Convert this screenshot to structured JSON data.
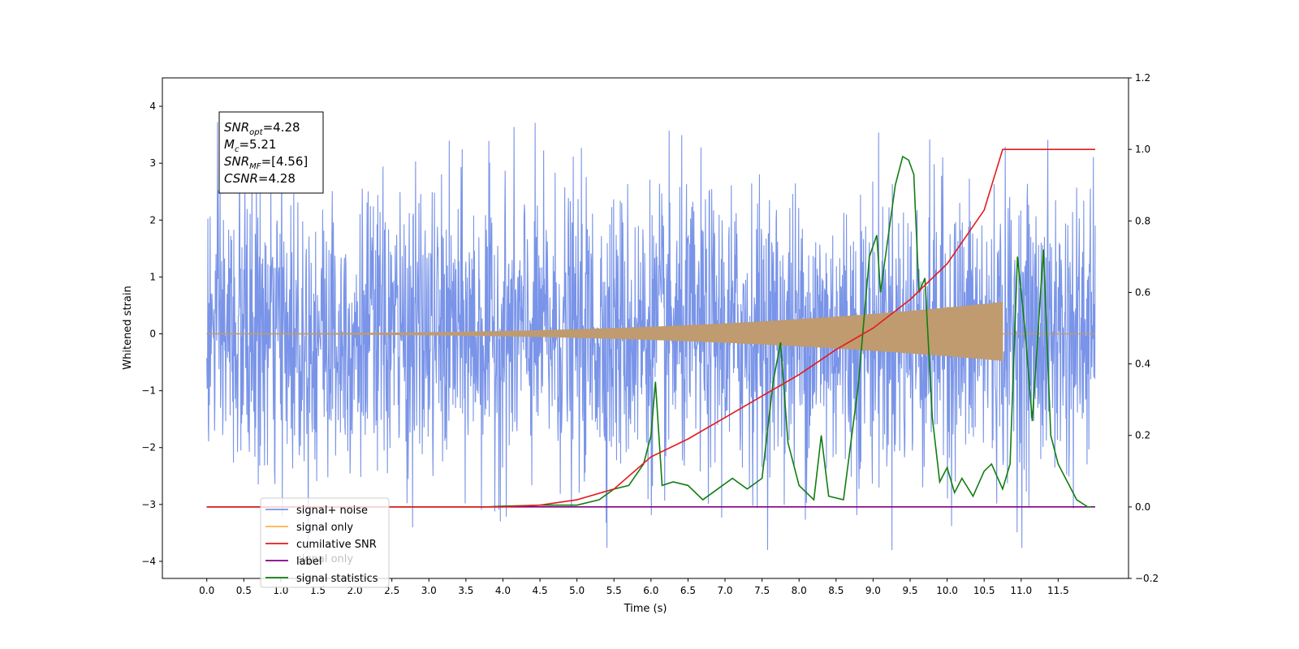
{
  "chart_data": {
    "type": "line",
    "title": "",
    "xlabel": "Time (s)",
    "ylabel": "Whitened strain",
    "y2label": "",
    "xlim": [
      -0.6,
      12.45
    ],
    "ylim": [
      -4.3,
      4.5
    ],
    "y2lim": [
      -0.2,
      1.2
    ],
    "xticks": [
      "0.0",
      "0.5",
      "1.0",
      "1.5",
      "2.0",
      "2.5",
      "3.0",
      "3.5",
      "4.0",
      "4.5",
      "5.0",
      "5.5",
      "6.0",
      "6.5",
      "7.0",
      "7.5",
      "8.0",
      "8.5",
      "9.0",
      "9.5",
      "10.0",
      "10.5",
      "11.0",
      "11.5"
    ],
    "yticks": [
      "4",
      "3",
      "2",
      "1",
      "0",
      "−1",
      "−2",
      "−3",
      "−4"
    ],
    "y2ticks": [
      "1.2",
      "1.0",
      "0.8",
      "0.6",
      "0.4",
      "0.2",
      "0.0",
      "−0.2"
    ],
    "grid": false,
    "legend_position": "lower-left",
    "colors": {
      "signal_noise": "#7994e8",
      "signal_only": "#ffb347",
      "signal_only_overlap": "#bf9b6f",
      "cumulative_snr": "#e41a1c",
      "label": "#800080",
      "signal_statistics": "#117d11"
    },
    "series": [
      {
        "name": "signal+ noise",
        "axis": "left",
        "description_range": [
          -3.8,
          4.1
        ],
        "x_range": [
          0,
          12.0
        ]
      },
      {
        "name": "signal only",
        "axis": "left",
        "x_range": [
          0,
          12.0
        ],
        "peak_time": 10.75,
        "peak_amplitude": 0.55
      },
      {
        "name": "cumilative SNR",
        "axis": "right",
        "x": [
          0,
          4.0,
          4.5,
          5.0,
          5.5,
          6.0,
          6.5,
          7.0,
          7.5,
          8.0,
          8.5,
          9.0,
          9.5,
          10.0,
          10.5,
          10.75,
          12.0
        ],
        "values": [
          0,
          0,
          0.005,
          0.02,
          0.05,
          0.14,
          0.19,
          0.25,
          0.31,
          0.37,
          0.44,
          0.5,
          0.58,
          0.68,
          0.83,
          1.0,
          1.0
        ]
      },
      {
        "name": "label",
        "axis": "right",
        "x": [
          0,
          12.0
        ],
        "values": [
          0,
          0
        ]
      },
      {
        "name": "signal statistics",
        "axis": "right",
        "x": [
          0,
          3.8,
          4.0,
          4.5,
          5.0,
          5.3,
          5.5,
          5.7,
          5.9,
          6.0,
          6.06,
          6.15,
          6.3,
          6.5,
          6.7,
          6.9,
          7.1,
          7.3,
          7.5,
          7.65,
          7.75,
          7.85,
          8.0,
          8.2,
          8.3,
          8.4,
          8.6,
          8.8,
          8.95,
          9.05,
          9.1,
          9.2,
          9.3,
          9.4,
          9.48,
          9.55,
          9.62,
          9.7,
          9.8,
          9.9,
          10.0,
          10.1,
          10.2,
          10.35,
          10.5,
          10.6,
          10.75,
          10.85,
          10.95,
          11.05,
          11.15,
          11.3,
          11.4,
          11.5,
          11.6,
          11.75,
          11.9,
          11.95
        ],
        "values": [
          0,
          0,
          0.002,
          0.005,
          0.005,
          0.02,
          0.05,
          0.06,
          0.12,
          0.2,
          0.35,
          0.06,
          0.07,
          0.06,
          0.02,
          0.05,
          0.08,
          0.05,
          0.08,
          0.35,
          0.46,
          0.18,
          0.06,
          0.02,
          0.2,
          0.03,
          0.02,
          0.34,
          0.7,
          0.76,
          0.6,
          0.75,
          0.9,
          0.98,
          0.97,
          0.93,
          0.6,
          0.64,
          0.25,
          0.07,
          0.11,
          0.04,
          0.08,
          0.03,
          0.1,
          0.12,
          0.05,
          0.12,
          0.7,
          0.5,
          0.24,
          0.72,
          0.2,
          0.12,
          0.08,
          0.02,
          0.0,
          0.0
        ]
      }
    ],
    "annotation": [
      {
        "name": "SNR",
        "sub": "opt",
        "value": "=4.28"
      },
      {
        "name": "M",
        "sub": "c",
        "value": "=5.21"
      },
      {
        "name": "SNR",
        "sub": "MF",
        "value": "=[4.56]"
      },
      {
        "name": "CSNR",
        "sub": "",
        "value": "=4.28"
      }
    ],
    "legend": [
      "signal+ noise",
      "signal only",
      "cumilative SNR",
      "label",
      "signal statistics"
    ],
    "legend_hidden_text": "signal only"
  }
}
